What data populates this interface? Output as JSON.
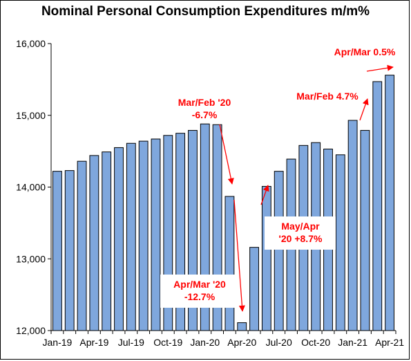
{
  "chart_data": {
    "type": "bar",
    "title": "Nominal Personal Consumption Expenditures m/m%",
    "xlabel": "",
    "ylabel": "",
    "ylim": [
      12000,
      16000
    ],
    "yticks": [
      "12,000",
      "13,000",
      "14,000",
      "15,000",
      "16,000"
    ],
    "ytick_values": [
      12000,
      13000,
      14000,
      15000,
      16000
    ],
    "categories": [
      "Jan-19",
      "Feb-19",
      "Mar-19",
      "Apr-19",
      "May-19",
      "Jun-19",
      "Jul-19",
      "Aug-19",
      "Sep-19",
      "Oct-19",
      "Nov-19",
      "Dec-19",
      "Jan-20",
      "Feb-20",
      "Mar-20",
      "Apr-20",
      "May-20",
      "Jun-20",
      "Jul-20",
      "Aug-20",
      "Sep-20",
      "Oct-20",
      "Nov-20",
      "Dec-20",
      "Jan-21",
      "Feb-21",
      "Mar-21",
      "Apr-21"
    ],
    "xtick_labels": [
      "Jan-19",
      "Apr-19",
      "Jul-19",
      "Oct-19",
      "Jan-20",
      "Apr-20",
      "Jul-20",
      "Oct-20",
      "Jan-21",
      "Apr-21"
    ],
    "values": [
      14220,
      14230,
      14360,
      14440,
      14490,
      14550,
      14610,
      14640,
      14670,
      14720,
      14750,
      14790,
      14880,
      14870,
      13870,
      12110,
      13160,
      14010,
      14220,
      14390,
      14580,
      14620,
      14530,
      14450,
      14930,
      14790,
      15470,
      15560
    ],
    "bar_color": "#7fa7dd",
    "bar_edge_color": "#000000",
    "annotation_color": "#ff0000",
    "grid": false,
    "annotations": [
      {
        "lines": [
          "Mar/Feb '20",
          "-6.7%"
        ],
        "boxed": false
      },
      {
        "lines": [
          "Apr/Mar '20",
          "-12.7%"
        ],
        "boxed": true
      },
      {
        "lines": [
          "May/Apr",
          "'20 +8.7%"
        ],
        "boxed": true
      },
      {
        "lines": [
          "Mar/Feb 4.7%"
        ],
        "boxed": false
      },
      {
        "lines": [
          "Apr/Mar 0.5%"
        ],
        "boxed": false
      }
    ]
  }
}
